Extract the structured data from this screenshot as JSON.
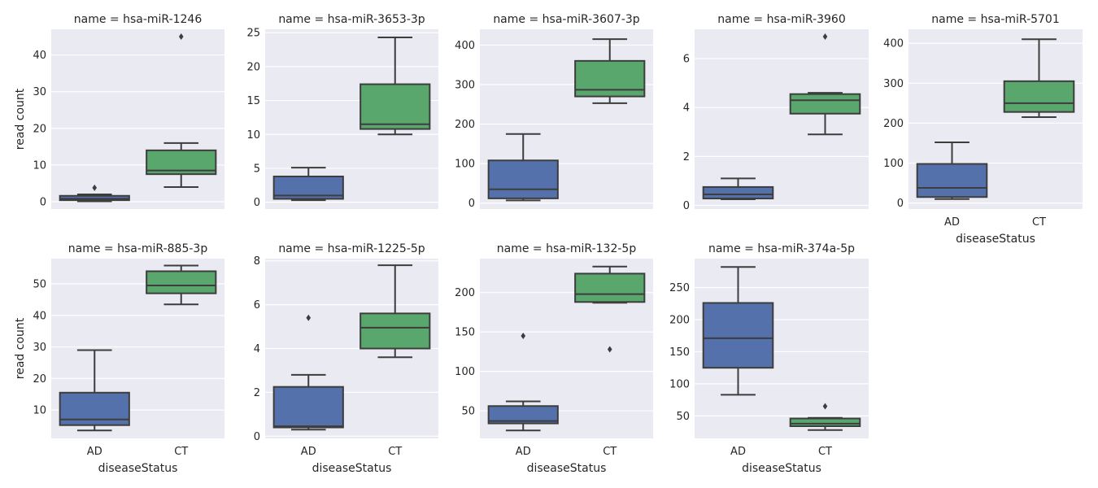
{
  "figure": {
    "ylabel": "read count",
    "xlabel": "diseaseStatus",
    "colors": {
      "AD": "#5471AB",
      "CT": "#59A76C",
      "panel_bg": "#EAEAF2",
      "grid": "#FFFFFF",
      "line": "#3D3D3D"
    }
  },
  "chart_data": [
    {
      "type": "box",
      "title": "name = hsa-miR-1246",
      "categories": [
        "AD",
        "CT"
      ],
      "ylim": [
        -2,
        47
      ],
      "yticks": [
        0,
        10,
        20,
        30,
        40
      ],
      "boxes": [
        {
          "category": "AD",
          "whisker_low": 0.1,
          "q1": 0.4,
          "median": 0.8,
          "q3": 1.6,
          "whisker_high": 2.0,
          "outliers": [
            3.8
          ]
        },
        {
          "category": "CT",
          "whisker_low": 4.0,
          "q1": 7.5,
          "median": 8.5,
          "q3": 14.0,
          "whisker_high": 16.0,
          "outliers": [
            45.0
          ]
        }
      ]
    },
    {
      "type": "box",
      "title": "name = hsa-miR-3653-3p",
      "categories": [
        "AD",
        "CT"
      ],
      "ylim": [
        -1,
        25.5
      ],
      "yticks": [
        0,
        5,
        10,
        15,
        20,
        25
      ],
      "boxes": [
        {
          "category": "AD",
          "whisker_low": 0.3,
          "q1": 0.5,
          "median": 1.0,
          "q3": 3.8,
          "whisker_high": 5.1,
          "outliers": []
        },
        {
          "category": "CT",
          "whisker_low": 10.0,
          "q1": 10.8,
          "median": 11.5,
          "q3": 17.4,
          "whisker_high": 24.3,
          "outliers": []
        }
      ]
    },
    {
      "type": "box",
      "title": "name = hsa-miR-3607-3p",
      "categories": [
        "AD",
        "CT"
      ],
      "ylim": [
        -15,
        440
      ],
      "yticks": [
        0,
        100,
        200,
        300,
        400
      ],
      "boxes": [
        {
          "category": "AD",
          "whisker_low": 7,
          "q1": 12,
          "median": 35,
          "q3": 108,
          "whisker_high": 175,
          "outliers": []
        },
        {
          "category": "CT",
          "whisker_low": 253,
          "q1": 270,
          "median": 287,
          "q3": 360,
          "whisker_high": 415,
          "outliers": []
        }
      ]
    },
    {
      "type": "box",
      "title": "name = hsa-miR-3960",
      "categories": [
        "AD",
        "CT"
      ],
      "ylim": [
        -0.15,
        7.2
      ],
      "yticks": [
        0,
        2,
        4,
        6
      ],
      "boxes": [
        {
          "category": "AD",
          "whisker_low": 0.25,
          "q1": 0.28,
          "median": 0.45,
          "q3": 0.75,
          "whisker_high": 1.1,
          "outliers": []
        },
        {
          "category": "CT",
          "whisker_low": 2.9,
          "q1": 3.75,
          "median": 4.3,
          "q3": 4.55,
          "whisker_high": 4.6,
          "outliers": [
            6.9
          ]
        }
      ]
    },
    {
      "type": "box",
      "title": "name = hsa-miR-5701",
      "categories": [
        "AD",
        "CT"
      ],
      "ylim": [
        -15,
        435
      ],
      "yticks": [
        0,
        100,
        200,
        300,
        400
      ],
      "boxes": [
        {
          "category": "AD",
          "whisker_low": 10,
          "q1": 15,
          "median": 38,
          "q3": 98,
          "whisker_high": 152,
          "outliers": []
        },
        {
          "category": "CT",
          "whisker_low": 215,
          "q1": 228,
          "median": 250,
          "q3": 305,
          "whisker_high": 410,
          "outliers": []
        }
      ]
    },
    {
      "type": "box",
      "title": "name = hsa-miR-885-3p",
      "categories": [
        "AD",
        "CT"
      ],
      "ylim": [
        1,
        58
      ],
      "yticks": [
        10,
        20,
        30,
        40,
        50
      ],
      "boxes": [
        {
          "category": "AD",
          "whisker_low": 3.5,
          "q1": 5.2,
          "median": 7.0,
          "q3": 15.5,
          "whisker_high": 29.0,
          "outliers": []
        },
        {
          "category": "CT",
          "whisker_low": 43.5,
          "q1": 47.0,
          "median": 49.5,
          "q3": 54.0,
          "whisker_high": 55.8,
          "outliers": []
        }
      ]
    },
    {
      "type": "box",
      "title": "name = hsa-miR-1225-5p",
      "categories": [
        "AD",
        "CT"
      ],
      "ylim": [
        -0.1,
        8.1
      ],
      "yticks": [
        0,
        2,
        4,
        6,
        8
      ],
      "boxes": [
        {
          "category": "AD",
          "whisker_low": 0.3,
          "q1": 0.4,
          "median": 0.45,
          "q3": 2.25,
          "whisker_high": 2.8,
          "outliers": [
            5.4
          ]
        },
        {
          "category": "CT",
          "whisker_low": 3.6,
          "q1": 4.0,
          "median": 4.95,
          "q3": 5.6,
          "whisker_high": 7.8,
          "outliers": []
        }
      ]
    },
    {
      "type": "box",
      "title": "name = hsa-miR-132-5p",
      "categories": [
        "AD",
        "CT"
      ],
      "ylim": [
        15,
        243
      ],
      "yticks": [
        50,
        100,
        150,
        200
      ],
      "boxes": [
        {
          "category": "AD",
          "whisker_low": 25,
          "q1": 34,
          "median": 37,
          "q3": 56,
          "whisker_high": 62,
          "outliers": [
            145
          ]
        },
        {
          "category": "CT",
          "whisker_low": 187,
          "q1": 188,
          "median": 198,
          "q3": 224,
          "whisker_high": 233,
          "outliers": [
            128
          ]
        }
      ]
    },
    {
      "type": "box",
      "title": "name = hsa-miR-374a-5p",
      "categories": [
        "AD",
        "CT"
      ],
      "ylim": [
        15,
        295
      ],
      "yticks": [
        50,
        100,
        150,
        200,
        250
      ],
      "boxes": [
        {
          "category": "AD",
          "whisker_low": 83,
          "q1": 125,
          "median": 171,
          "q3": 226,
          "whisker_high": 282,
          "outliers": []
        },
        {
          "category": "CT",
          "whisker_low": 28,
          "q1": 34,
          "median": 38,
          "q3": 46,
          "whisker_high": 47,
          "outliers": [
            65
          ]
        }
      ]
    }
  ]
}
